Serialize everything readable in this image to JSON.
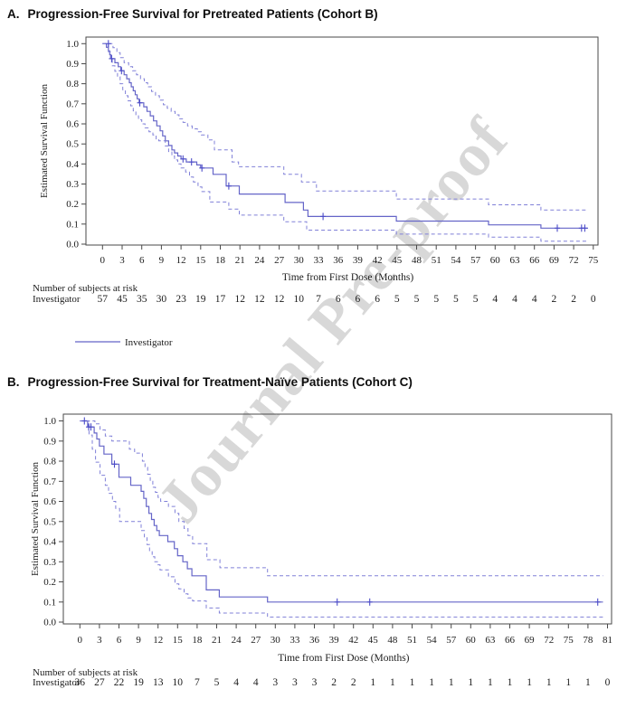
{
  "page": {
    "watermark": "Journal Pre-proof"
  },
  "colors": {
    "solid_curve": "#6565c8",
    "ci_curve": "#8080d8",
    "censor": "#4c4cc8",
    "risk_numbers": "#3c3cc8",
    "frame": "#4a4a4a",
    "label_text": "#1c1c1c",
    "watermark": "#d8d8d8"
  },
  "panels": [
    {
      "letter": "A.",
      "title": "Progression-Free Survival for Pretreated Patients (Cohort B)",
      "ylabel": "Estimated Survival Function",
      "xlabel": "Time from First Dose (Months)",
      "yticks": [
        "1.0",
        "0.9",
        "0.8",
        "0.7",
        "0.6",
        "0.5",
        "0.4",
        "0.3",
        "0.2",
        "0.1",
        "0.0"
      ],
      "at_risk_header": "Number of subjects at risk",
      "series_label": "Investigator",
      "legend_label": "Investigator"
    },
    {
      "letter": "B.",
      "title": "Progression-Free Survival for Treatment-Naïve Patients (Cohort C)",
      "ylabel": "Estimated Survival Function",
      "xlabel": "Time from First Dose (Months)",
      "yticks": [
        "1.0",
        "0.9",
        "0.8",
        "0.7",
        "0.6",
        "0.5",
        "0.4",
        "0.3",
        "0.2",
        "0.1",
        "0.0"
      ],
      "at_risk_header": "Number of subjects at risk",
      "series_label": "Investigator",
      "legend_label": null
    }
  ],
  "chart_data": [
    {
      "type": "line",
      "subtype": "kaplan-meier-step",
      "title": "A. Progression-Free Survival for Pretreated Patients (Cohort B)",
      "xlabel": "Time from First Dose (Months)",
      "ylabel": "Estimated Survival Function",
      "xlim": [
        0,
        75
      ],
      "ylim": [
        0.0,
        1.0
      ],
      "xticks": [
        0,
        3,
        6,
        9,
        12,
        15,
        18,
        21,
        24,
        27,
        30,
        33,
        36,
        39,
        42,
        45,
        48,
        51,
        54,
        57,
        60,
        63,
        66,
        69,
        72,
        75
      ],
      "grid": false,
      "legend_position": "bottom-left",
      "series": [
        {
          "name": "Investigator",
          "style": "solid",
          "end": 74.2,
          "steps": [
            [
              0,
              1.0
            ],
            [
              0.6,
              0.982
            ],
            [
              0.9,
              0.964
            ],
            [
              1.1,
              0.945
            ],
            [
              1.3,
              0.925
            ],
            [
              1.9,
              0.905
            ],
            [
              2.4,
              0.885
            ],
            [
              2.8,
              0.865
            ],
            [
              3.3,
              0.845
            ],
            [
              3.7,
              0.825
            ],
            [
              4.1,
              0.805
            ],
            [
              4.4,
              0.785
            ],
            [
              4.7,
              0.765
            ],
            [
              5.0,
              0.745
            ],
            [
              5.3,
              0.725
            ],
            [
              5.6,
              0.705
            ],
            [
              6.3,
              0.685
            ],
            [
              6.8,
              0.662
            ],
            [
              7.3,
              0.64
            ],
            [
              7.8,
              0.615
            ],
            [
              8.3,
              0.59
            ],
            [
              8.8,
              0.565
            ],
            [
              9.2,
              0.54
            ],
            [
              9.6,
              0.515
            ],
            [
              10.1,
              0.492
            ],
            [
              10.6,
              0.47
            ],
            [
              11.0,
              0.455
            ],
            [
              11.5,
              0.44
            ],
            [
              12.0,
              0.425
            ],
            [
              12.8,
              0.41
            ],
            [
              14.4,
              0.395
            ],
            [
              15.0,
              0.38
            ],
            [
              16.9,
              0.348
            ],
            [
              18.9,
              0.29
            ],
            [
              20.9,
              0.25
            ],
            [
              27.9,
              0.208
            ],
            [
              30.7,
              0.17
            ],
            [
              31.4,
              0.138
            ],
            [
              44.9,
              0.115
            ],
            [
              59.0,
              0.096
            ],
            [
              67.0,
              0.08
            ]
          ]
        },
        {
          "name": "Upper 95% CI",
          "style": "dashed",
          "end": 74.2,
          "steps": [
            [
              0,
              1.0
            ],
            [
              1.6,
              0.98
            ],
            [
              2.2,
              0.955
            ],
            [
              2.7,
              0.93
            ],
            [
              3.3,
              0.905
            ],
            [
              4.0,
              0.885
            ],
            [
              4.6,
              0.865
            ],
            [
              5.2,
              0.845
            ],
            [
              5.8,
              0.825
            ],
            [
              6.4,
              0.805
            ],
            [
              6.9,
              0.785
            ],
            [
              7.5,
              0.762
            ],
            [
              8.1,
              0.74
            ],
            [
              8.7,
              0.718
            ],
            [
              9.3,
              0.695
            ],
            [
              9.9,
              0.678
            ],
            [
              10.5,
              0.662
            ],
            [
              11.1,
              0.645
            ],
            [
              11.7,
              0.625
            ],
            [
              12.3,
              0.607
            ],
            [
              13.0,
              0.59
            ],
            [
              13.7,
              0.575
            ],
            [
              14.5,
              0.56
            ],
            [
              15.1,
              0.545
            ],
            [
              16.1,
              0.52
            ],
            [
              17.1,
              0.47
            ],
            [
              19.8,
              0.41
            ],
            [
              20.8,
              0.386
            ],
            [
              27.7,
              0.348
            ],
            [
              30.4,
              0.31
            ],
            [
              32.7,
              0.265
            ],
            [
              44.9,
              0.225
            ],
            [
              59.0,
              0.196
            ],
            [
              67.0,
              0.17
            ]
          ]
        },
        {
          "name": "Lower 95% CI",
          "style": "dashed",
          "end": 74.2,
          "steps": [
            [
              0,
              1.0
            ],
            [
              0.9,
              0.96
            ],
            [
              1.2,
              0.925
            ],
            [
              1.5,
              0.89
            ],
            [
              1.9,
              0.862
            ],
            [
              2.3,
              0.835
            ],
            [
              2.7,
              0.8
            ],
            [
              3.1,
              0.77
            ],
            [
              3.5,
              0.74
            ],
            [
              3.9,
              0.715
            ],
            [
              4.3,
              0.69
            ],
            [
              4.7,
              0.665
            ],
            [
              5.1,
              0.64
            ],
            [
              5.5,
              0.62
            ],
            [
              6.0,
              0.6
            ],
            [
              6.5,
              0.58
            ],
            [
              7.1,
              0.56
            ],
            [
              7.7,
              0.545
            ],
            [
              8.2,
              0.525
            ],
            [
              8.6,
              0.515
            ],
            [
              9.6,
              0.49
            ],
            [
              10.1,
              0.462
            ],
            [
              10.6,
              0.44
            ],
            [
              11.0,
              0.42
            ],
            [
              11.5,
              0.4
            ],
            [
              12.0,
              0.38
            ],
            [
              12.7,
              0.36
            ],
            [
              13.3,
              0.335
            ],
            [
              13.9,
              0.31
            ],
            [
              14.6,
              0.285
            ],
            [
              15.2,
              0.262
            ],
            [
              16.4,
              0.21
            ],
            [
              19.3,
              0.175
            ],
            [
              20.9,
              0.145
            ],
            [
              27.7,
              0.112
            ],
            [
              31.2,
              0.07
            ],
            [
              44.9,
              0.05
            ],
            [
              59.0,
              0.035
            ],
            [
              67.0,
              0.015
            ]
          ]
        }
      ],
      "censor_marks": [
        [
          0.9,
          1.0
        ],
        [
          1.4,
          0.925
        ],
        [
          2.9,
          0.865
        ],
        [
          5.7,
          0.705
        ],
        [
          12.3,
          0.425
        ],
        [
          13.6,
          0.41
        ],
        [
          15.2,
          0.38
        ],
        [
          19.3,
          0.29
        ],
        [
          33.7,
          0.138
        ],
        [
          69.5,
          0.08
        ],
        [
          73.2,
          0.08
        ],
        [
          73.7,
          0.08
        ]
      ],
      "at_risk": {
        "label": "Investigator",
        "counts": [
          57,
          45,
          35,
          30,
          23,
          19,
          17,
          12,
          12,
          12,
          10,
          7,
          6,
          6,
          6,
          5,
          5,
          5,
          5,
          5,
          4,
          4,
          4,
          2,
          2,
          0
        ]
      }
    },
    {
      "type": "line",
      "subtype": "kaplan-meier-step",
      "title": "B. Progression-Free Survival for Treatment-Naïve Patients (Cohort C)",
      "xlabel": "Time from First Dose (Months)",
      "ylabel": "Estimated Survival Function",
      "xlim": [
        0,
        81
      ],
      "ylim": [
        0.0,
        1.0
      ],
      "xticks": [
        0,
        3,
        6,
        9,
        12,
        15,
        18,
        21,
        24,
        27,
        30,
        33,
        36,
        39,
        42,
        45,
        48,
        51,
        54,
        57,
        60,
        63,
        66,
        69,
        72,
        75,
        78,
        81
      ],
      "grid": false,
      "legend_position": "none",
      "series": [
        {
          "name": "Investigator",
          "style": "solid",
          "end": 80.3,
          "steps": [
            [
              0,
              1.0
            ],
            [
              1.2,
              0.97
            ],
            [
              2.2,
              0.94
            ],
            [
              2.6,
              0.91
            ],
            [
              3.0,
              0.875
            ],
            [
              3.7,
              0.835
            ],
            [
              4.9,
              0.785
            ],
            [
              6.0,
              0.72
            ],
            [
              7.8,
              0.68
            ],
            [
              9.4,
              0.65
            ],
            [
              9.8,
              0.615
            ],
            [
              10.2,
              0.575
            ],
            [
              10.6,
              0.54
            ],
            [
              11.0,
              0.51
            ],
            [
              11.4,
              0.48
            ],
            [
              11.8,
              0.455
            ],
            [
              12.2,
              0.43
            ],
            [
              13.5,
              0.4
            ],
            [
              14.5,
              0.365
            ],
            [
              15.0,
              0.33
            ],
            [
              15.8,
              0.3
            ],
            [
              16.5,
              0.265
            ],
            [
              17.2,
              0.23
            ],
            [
              19.4,
              0.16
            ],
            [
              21.4,
              0.125
            ],
            [
              28.8,
              0.1
            ]
          ]
        },
        {
          "name": "Upper 95% CI",
          "style": "dashed",
          "end": 80.3,
          "steps": [
            [
              0,
              1.0
            ],
            [
              2.3,
              0.985
            ],
            [
              3.1,
              0.955
            ],
            [
              3.9,
              0.925
            ],
            [
              4.9,
              0.9
            ],
            [
              7.6,
              0.86
            ],
            [
              8.4,
              0.84
            ],
            [
              9.6,
              0.8
            ],
            [
              10.0,
              0.77
            ],
            [
              10.4,
              0.735
            ],
            [
              10.8,
              0.7
            ],
            [
              11.2,
              0.67
            ],
            [
              11.6,
              0.645
            ],
            [
              12.0,
              0.62
            ],
            [
              12.4,
              0.6
            ],
            [
              13.6,
              0.575
            ],
            [
              14.6,
              0.54
            ],
            [
              15.2,
              0.5
            ],
            [
              16.0,
              0.465
            ],
            [
              16.6,
              0.43
            ],
            [
              17.3,
              0.39
            ],
            [
              19.5,
              0.31
            ],
            [
              21.5,
              0.27
            ],
            [
              28.8,
              0.23
            ]
          ]
        },
        {
          "name": "Lower 95% CI",
          "style": "dashed",
          "end": 80.3,
          "steps": [
            [
              0,
              1.0
            ],
            [
              1.4,
              0.93
            ],
            [
              1.9,
              0.86
            ],
            [
              2.4,
              0.795
            ],
            [
              3.1,
              0.73
            ],
            [
              3.9,
              0.68
            ],
            [
              4.4,
              0.64
            ],
            [
              5.0,
              0.6
            ],
            [
              5.5,
              0.565
            ],
            [
              6.1,
              0.5
            ],
            [
              9.4,
              0.455
            ],
            [
              9.9,
              0.42
            ],
            [
              10.3,
              0.385
            ],
            [
              10.7,
              0.35
            ],
            [
              11.1,
              0.325
            ],
            [
              11.5,
              0.3
            ],
            [
              11.9,
              0.285
            ],
            [
              12.3,
              0.26
            ],
            [
              13.6,
              0.225
            ],
            [
              14.6,
              0.19
            ],
            [
              15.2,
              0.165
            ],
            [
              16.0,
              0.14
            ],
            [
              16.6,
              0.12
            ],
            [
              17.3,
              0.105
            ],
            [
              19.4,
              0.07
            ],
            [
              21.4,
              0.045
            ],
            [
              28.8,
              0.025
            ]
          ]
        }
      ],
      "censor_marks": [
        [
          0.7,
          1.0
        ],
        [
          1.35,
          0.97
        ],
        [
          1.7,
          0.97
        ],
        [
          5.3,
          0.785
        ],
        [
          39.5,
          0.1
        ],
        [
          44.5,
          0.1
        ],
        [
          79.5,
          0.1
        ]
      ],
      "at_risk": {
        "label": "Investigator",
        "counts": [
          36,
          27,
          22,
          19,
          13,
          10,
          7,
          5,
          4,
          4,
          3,
          3,
          3,
          2,
          2,
          1,
          1,
          1,
          1,
          1,
          1,
          1,
          1,
          1,
          1,
          1,
          1,
          0
        ]
      }
    }
  ]
}
